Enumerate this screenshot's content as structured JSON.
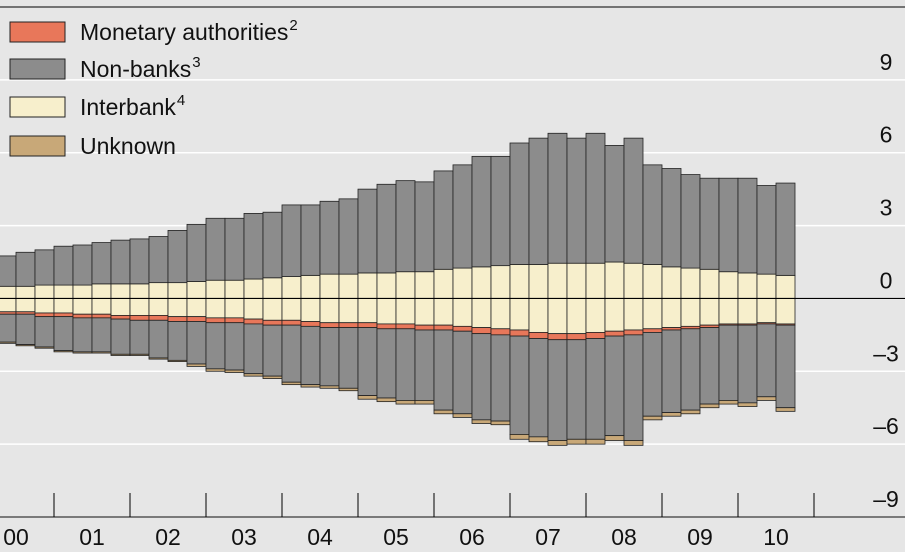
{
  "chart_data": {
    "type": "bar",
    "stacked": true,
    "categories": [
      "00",
      null,
      null,
      null,
      "01",
      null,
      null,
      null,
      "02",
      null,
      null,
      null,
      "03",
      null,
      null,
      null,
      "04",
      null,
      null,
      null,
      "05",
      null,
      null,
      null,
      "06",
      null,
      null,
      null,
      "07",
      null,
      null,
      null,
      "08",
      null,
      null,
      null,
      "09",
      null,
      null,
      null,
      "10",
      null
    ],
    "series": [
      {
        "name": "Monetary authorities",
        "footnote": "2",
        "color": "#e8775a",
        "values_below": [
          -0.1,
          -0.1,
          -0.15,
          -0.15,
          -0.15,
          -0.15,
          -0.15,
          -0.2,
          -0.2,
          -0.2,
          -0.2,
          -0.2,
          -0.2,
          -0.2,
          -0.2,
          -0.2,
          -0.2,
          -0.2,
          -0.2,
          -0.2,
          -0.2,
          -0.2,
          -0.2,
          -0.2,
          -0.2,
          -0.25,
          -0.25,
          -0.25,
          -0.25,
          -0.25,
          -0.25,
          -0.25,
          -0.2,
          -0.2,
          -0.15,
          -0.1,
          -0.1,
          -0.1,
          -0.05,
          -0.05,
          -0.05,
          -0.05
        ]
      },
      {
        "name": "Non-banks",
        "footnote": "3",
        "color": "#8c8c8c",
        "values": [
          1.25,
          1.4,
          1.45,
          1.6,
          1.65,
          1.7,
          1.8,
          1.85,
          1.9,
          2.15,
          2.35,
          2.55,
          2.55,
          2.7,
          2.7,
          2.95,
          2.9,
          3.0,
          3.1,
          3.45,
          3.65,
          3.75,
          3.7,
          4.05,
          4.25,
          4.55,
          4.5,
          5.0,
          5.2,
          5.35,
          5.15,
          5.35,
          4.8,
          5.15,
          4.1,
          4.05,
          3.85,
          3.75,
          3.85,
          3.9,
          3.65,
          3.8
        ],
        "values_below": [
          -1.15,
          -1.25,
          -1.25,
          -1.4,
          -1.4,
          -1.4,
          -1.45,
          -1.4,
          -1.55,
          -1.6,
          -1.75,
          -1.9,
          -1.95,
          -2.05,
          -2.1,
          -2.35,
          -2.4,
          -2.4,
          -2.5,
          -2.8,
          -2.85,
          -2.95,
          -2.9,
          -3.3,
          -3.4,
          -3.55,
          -3.55,
          -4.05,
          -4.05,
          -4.15,
          -4.1,
          -4.15,
          -4.1,
          -4.35,
          -3.45,
          -3.4,
          -3.35,
          -3.15,
          -3.1,
          -3.2,
          -3.0,
          -3.4
        ]
      },
      {
        "name": "Interbank",
        "footnote": "4",
        "color": "#f7efcc",
        "values": [
          0.5,
          0.5,
          0.55,
          0.55,
          0.55,
          0.6,
          0.6,
          0.6,
          0.65,
          0.65,
          0.7,
          0.75,
          0.75,
          0.8,
          0.85,
          0.9,
          0.95,
          1.0,
          1.0,
          1.05,
          1.05,
          1.1,
          1.1,
          1.2,
          1.25,
          1.3,
          1.35,
          1.4,
          1.4,
          1.45,
          1.45,
          1.45,
          1.5,
          1.45,
          1.4,
          1.3,
          1.25,
          1.2,
          1.1,
          1.05,
          1.0,
          0.95
        ],
        "values_below": [
          -0.55,
          -0.55,
          -0.6,
          -0.6,
          -0.65,
          -0.65,
          -0.7,
          -0.7,
          -0.7,
          -0.75,
          -0.75,
          -0.8,
          -0.8,
          -0.85,
          -0.9,
          -0.9,
          -0.95,
          -1.0,
          -1.0,
          -1.0,
          -1.05,
          -1.05,
          -1.1,
          -1.1,
          -1.15,
          -1.2,
          -1.25,
          -1.3,
          -1.4,
          -1.45,
          -1.45,
          -1.4,
          -1.35,
          -1.3,
          -1.25,
          -1.2,
          -1.15,
          -1.1,
          -1.05,
          -1.05,
          -1.0,
          -1.05
        ]
      },
      {
        "name": "Unknown",
        "color": "#c8a878",
        "values_below": [
          -0.05,
          -0.05,
          -0.05,
          -0.05,
          -0.05,
          -0.05,
          -0.05,
          -0.05,
          -0.05,
          -0.05,
          -0.1,
          -0.1,
          -0.1,
          -0.1,
          -0.1,
          -0.1,
          -0.1,
          -0.1,
          -0.1,
          -0.15,
          -0.15,
          -0.15,
          -0.15,
          -0.15,
          -0.15,
          -0.15,
          -0.15,
          -0.2,
          -0.2,
          -0.2,
          -0.2,
          -0.2,
          -0.2,
          -0.2,
          -0.15,
          -0.15,
          -0.15,
          -0.15,
          -0.15,
          -0.15,
          -0.15,
          -0.15
        ]
      }
    ],
    "ylim": [
      -9,
      12
    ],
    "yticks": [
      9,
      6,
      3,
      0,
      {
        "value": -3,
        "label": "–3"
      },
      {
        "value": -6,
        "label": "–6"
      },
      {
        "value": -9,
        "label": "–9"
      }
    ],
    "y_axis_side": "right",
    "grid": true,
    "legend": "top-left"
  }
}
